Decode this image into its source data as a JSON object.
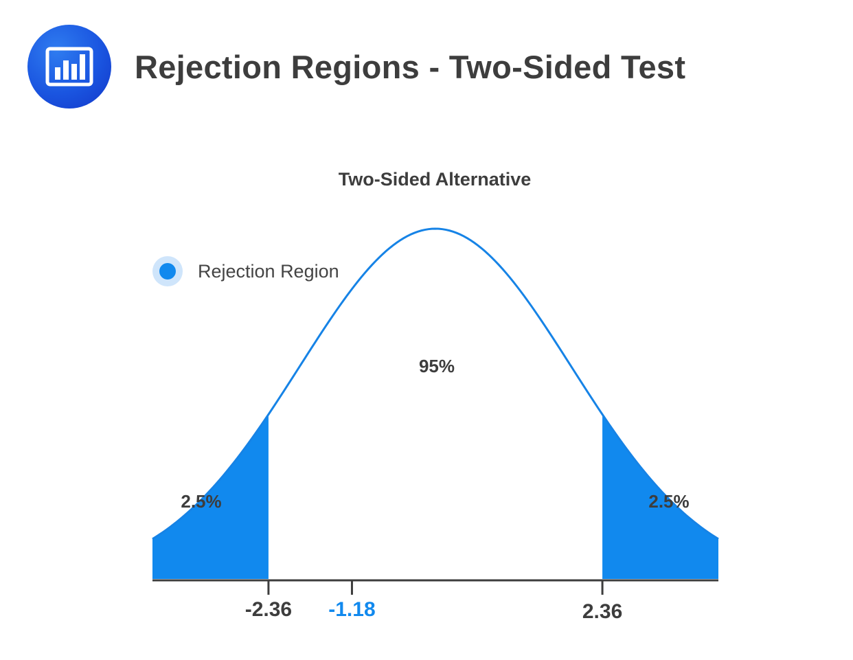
{
  "header": {
    "title": "Rejection Regions - Two-Sided Test",
    "icon": "bar-chart-icon",
    "icon_color": "#1a55e0"
  },
  "chart_data": {
    "type": "area",
    "title": "Two-Sided Alternative",
    "distribution": "normal",
    "xlim": [
      -4,
      4
    ],
    "legend": {
      "label": "Rejection Region",
      "color": "#1189ee",
      "placement": "top-left"
    },
    "critical_values": [
      -2.36,
      2.36
    ],
    "marked_value": -1.18,
    "marked_value_color": "#1189ee",
    "regions": [
      {
        "label": "2.5%",
        "from": -4,
        "to": -2.36,
        "rejection": true
      },
      {
        "label": "95%",
        "from": -2.36,
        "to": 2.36,
        "rejection": false
      },
      {
        "label": "2.5%",
        "from": 2.36,
        "to": 4,
        "rejection": true
      }
    ],
    "tick_labels": [
      {
        "value": -2.36,
        "label": "-2.36",
        "color": "#3d3d3d"
      },
      {
        "value": -1.18,
        "label": "-1.18",
        "color": "#1189ee"
      },
      {
        "value": 2.36,
        "label": "2.36",
        "color": "#3d3d3d"
      }
    ],
    "curve_color": "#1683e6",
    "fill_color": "#1189ee",
    "axis_color": "#3d3d3d"
  }
}
